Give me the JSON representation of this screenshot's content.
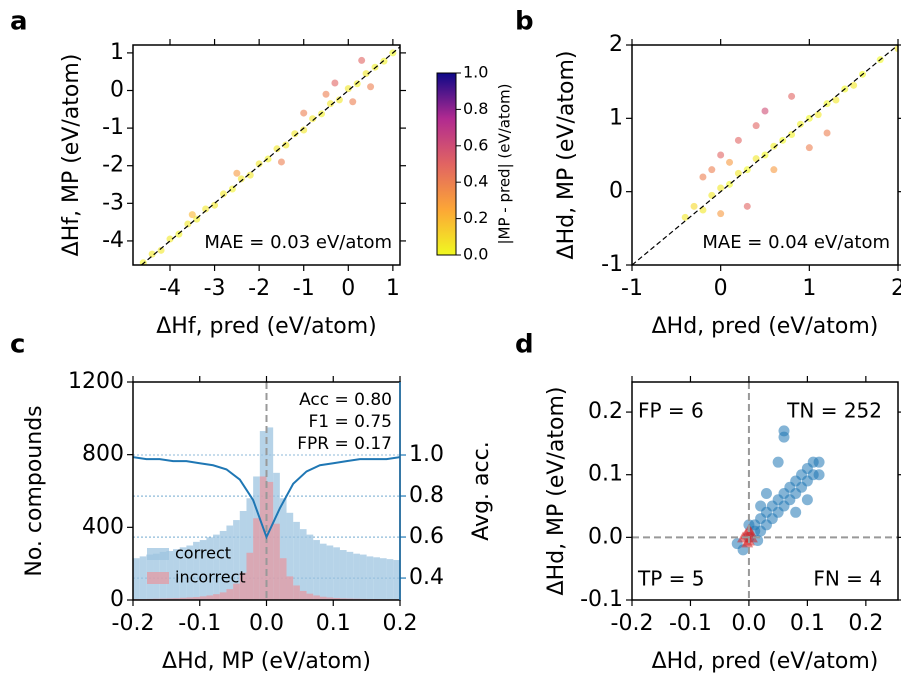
{
  "chart_data": [
    {
      "type": "scatter",
      "panel_label": "a",
      "x_label": "ΔHf, pred (eV/atom)",
      "y_label": "ΔHf, MP (eV/atom)",
      "annotation": "MAE = 0.03 eV/atom",
      "xlim": [
        -4.83,
        1.16
      ],
      "ylim": [
        -4.64,
        1.21
      ],
      "xticks": [
        -4,
        -3,
        -2,
        -1,
        0,
        1
      ],
      "yticks": [
        -4,
        -3,
        -2,
        -1,
        0,
        1
      ],
      "x": [
        -4.6,
        -4.4,
        -4.2,
        -4.0,
        -3.8,
        -3.6,
        -3.4,
        -3.2,
        -3.0,
        -2.8,
        -2.6,
        -2.4,
        -2.2,
        -2.0,
        -1.8,
        -1.6,
        -1.4,
        -1.2,
        -1.0,
        -0.8,
        -0.6,
        -0.4,
        -0.2,
        0.0,
        0.2,
        0.4,
        0.6,
        0.8,
        1.0,
        -2.5,
        -1.5,
        -0.5,
        0.3,
        -3.5,
        -1.0,
        0.5,
        -0.3,
        0.1
      ],
      "y": [
        -4.58,
        -4.35,
        -4.25,
        -3.95,
        -3.82,
        -3.55,
        -3.42,
        -3.15,
        -3.05,
        -2.75,
        -2.62,
        -2.35,
        -2.25,
        -1.95,
        -1.82,
        -1.55,
        -1.45,
        -1.15,
        -1.05,
        -0.75,
        -0.62,
        -0.35,
        -0.25,
        0.05,
        0.18,
        0.45,
        0.62,
        0.78,
        1.0,
        -2.2,
        -1.9,
        -0.1,
        0.8,
        -3.3,
        -0.6,
        0.1,
        0.2,
        -0.3
      ],
      "diagonal": true,
      "cmap": [
        "#f0f921",
        "#fca636",
        "#e16462",
        "#b12a90",
        "#0d0887"
      ],
      "clim": [
        0,
        1
      ],
      "cticks": [
        {
          "value": 0,
          "label": "0.0"
        },
        0.2,
        0.4,
        0.6,
        0.8,
        {
          "value": 1,
          "label": "1.0"
        }
      ],
      "colorbar_label": "|MP - pred| (eV/atom)"
    },
    {
      "type": "scatter",
      "panel_label": "b",
      "x_label": "ΔHd, pred (eV/atom)",
      "y_label": "ΔHd, MP (eV/atom)",
      "annotation": "MAE = 0.04 eV/atom",
      "xlim": [
        -1,
        2
      ],
      "ylim": [
        -1,
        2
      ],
      "xticks": [
        -1,
        0,
        1,
        2
      ],
      "yticks": [
        -1,
        0,
        1,
        2
      ],
      "x": [
        -0.4,
        -0.3,
        -0.2,
        -0.1,
        0,
        0.1,
        0.2,
        0.3,
        0.4,
        0.5,
        0.6,
        0.7,
        0.8,
        0.9,
        1.0,
        1.1,
        1.2,
        1.3,
        1.4,
        1.5,
        1.6,
        1.8,
        2.0,
        0.0,
        0.2,
        0.4,
        -0.2,
        0.6,
        1.0,
        0.3,
        0.1,
        -0.1,
        0.5,
        0.8,
        1.2,
        0.0
      ],
      "y": [
        -0.35,
        -0.2,
        -0.25,
        -0.05,
        0.05,
        0.1,
        0.25,
        0.3,
        0.45,
        0.5,
        0.62,
        0.7,
        0.78,
        0.92,
        1.0,
        1.05,
        1.2,
        1.25,
        1.4,
        1.45,
        1.6,
        1.8,
        1.95,
        0.5,
        0.7,
        0.9,
        0.2,
        0.3,
        0.6,
        -0.2,
        0.4,
        0.3,
        1.1,
        1.3,
        0.8,
        -0.3
      ],
      "diagonal": true,
      "cmap": [
        "#f0f921",
        "#fca636",
        "#e16462",
        "#b12a90",
        "#0d0887"
      ],
      "clim": [
        0,
        1
      ]
    },
    {
      "type": "histogram",
      "panel_label": "c",
      "x_label": "ΔHd, MP (eV/atom)",
      "y_label": "No. compounds",
      "y2_label": "Avg. acc.",
      "xlim": [
        -0.2,
        0.2
      ],
      "ylim": [
        0,
        1200
      ],
      "y2lim": [
        0.293,
        1.356
      ],
      "xticks": [
        -0.2,
        -0.1,
        {
          "value": 0,
          "label": "0.0"
        },
        0.1,
        0.2
      ],
      "yticks": [
        0,
        400,
        800,
        1200
      ],
      "y2ticks": [
        0.4,
        0.6,
        0.8,
        {
          "value": 1,
          "label": "1.0"
        }
      ],
      "y2grid": true,
      "bins": [
        -0.2,
        -0.19,
        -0.18,
        -0.17,
        -0.16,
        -0.15,
        -0.14,
        -0.13,
        -0.12,
        -0.11,
        -0.1,
        -0.09,
        -0.08,
        -0.07,
        -0.06,
        -0.05,
        -0.04,
        -0.03,
        -0.02,
        -0.01,
        0,
        0.01,
        0.02,
        0.03,
        0.04,
        0.05,
        0.06,
        0.07,
        0.08,
        0.09,
        0.1,
        0.11,
        0.12,
        0.13,
        0.14,
        0.15,
        0.16,
        0.17,
        0.18,
        0.19,
        0.2
      ],
      "series": [
        {
          "name": "correct",
          "color": "#9ec4e0",
          "values": [
            230,
            240,
            250,
            255,
            265,
            270,
            280,
            290,
            300,
            320,
            330,
            345,
            360,
            380,
            410,
            440,
            490,
            560,
            680,
            930,
            950,
            700,
            560,
            480,
            430,
            390,
            360,
            330,
            310,
            300,
            290,
            275,
            265,
            255,
            250,
            240,
            235,
            230,
            225,
            220
          ]
        },
        {
          "name": "incorrect",
          "color": "#e49aa3",
          "values": [
            5,
            5,
            6,
            7,
            8,
            9,
            10,
            12,
            14,
            16,
            20,
            25,
            32,
            42,
            60,
            90,
            150,
            260,
            450,
            680,
            650,
            420,
            230,
            130,
            80,
            50,
            35,
            25,
            18,
            14,
            11,
            9,
            8,
            7,
            6,
            5,
            5,
            4,
            4,
            4
          ]
        }
      ],
      "line": {
        "axis": "y2",
        "color": "#1f77b4",
        "x": [
          -0.2,
          -0.18,
          -0.16,
          -0.14,
          -0.12,
          -0.1,
          -0.08,
          -0.06,
          -0.04,
          -0.02,
          0,
          0.02,
          0.04,
          0.06,
          0.08,
          0.1,
          0.12,
          0.14,
          0.16,
          0.18,
          0.2
        ],
        "values": [
          0.99,
          0.98,
          0.98,
          0.97,
          0.97,
          0.96,
          0.95,
          0.93,
          0.88,
          0.78,
          0.6,
          0.74,
          0.86,
          0.92,
          0.95,
          0.96,
          0.97,
          0.98,
          0.98,
          0.98,
          0.99
        ]
      },
      "vline": 0,
      "annotations": [
        "Acc = 0.80",
        "F1 = 0.75",
        "FPR = 0.17"
      ],
      "legend": "lower left"
    },
    {
      "type": "scatter",
      "panel_label": "d",
      "x_label": "ΔHd, pred (eV/atom)",
      "y_label": "ΔHd, MP (eV/atom)",
      "xlim": [
        -0.2,
        0.255
      ],
      "ylim": [
        -0.1,
        0.248
      ],
      "xticks": [
        -0.2,
        -0.1,
        {
          "value": 0,
          "label": "0.0"
        },
        0.1,
        0.2
      ],
      "yticks": [
        -0.1,
        {
          "value": 0,
          "label": "0.0"
        },
        0.1,
        0.2
      ],
      "series": [
        {
          "color": "#1f77b4",
          "marker": "circle",
          "x": [
            -0.01,
            0.0,
            0.01,
            0.02,
            0.02,
            0.03,
            0.03,
            0.04,
            0.04,
            0.05,
            0.05,
            0.06,
            0.06,
            0.07,
            0.07,
            0.08,
            0.08,
            0.09,
            0.09,
            0.1,
            0.1,
            0.11,
            0.11,
            0.12,
            0.06,
            0.06,
            0.05,
            0.03,
            0.01,
            0.02,
            0.08,
            0.1,
            0.12,
            0.0,
            0.015,
            -0.02
          ],
          "y": [
            -0.02,
            0.0,
            0.01,
            0.01,
            0.03,
            0.02,
            0.04,
            0.03,
            0.05,
            0.04,
            0.06,
            0.05,
            0.07,
            0.06,
            0.08,
            0.07,
            0.09,
            0.08,
            0.1,
            0.09,
            0.11,
            0.1,
            0.12,
            0.1,
            0.17,
            0.16,
            0.12,
            0.07,
            0.02,
            0.05,
            0.04,
            0.06,
            0.12,
            0.02,
            -0.005,
            -0.01
          ]
        },
        {
          "color": "#d62728",
          "marker": "triangle",
          "x": [
            -0.005,
            0.0,
            0.003,
            -0.01,
            0.005,
            0.0,
            -0.003
          ],
          "y": [
            0.005,
            -0.005,
            0.008,
            0.0,
            0.0,
            0.012,
            -0.008
          ]
        }
      ],
      "hline": 0,
      "vline": 0,
      "quadrant_labels": [
        {
          "text": "FP = 6",
          "color": "#d62728",
          "corner": "top-left"
        },
        {
          "text": "TN = 252",
          "color": "#1f77b4",
          "corner": "top-right"
        },
        {
          "text": "TP = 5",
          "color": "#1f77b4",
          "corner": "bottom-left"
        },
        {
          "text": "FN = 4",
          "color": "#d62728",
          "corner": "bottom-right"
        }
      ]
    }
  ]
}
